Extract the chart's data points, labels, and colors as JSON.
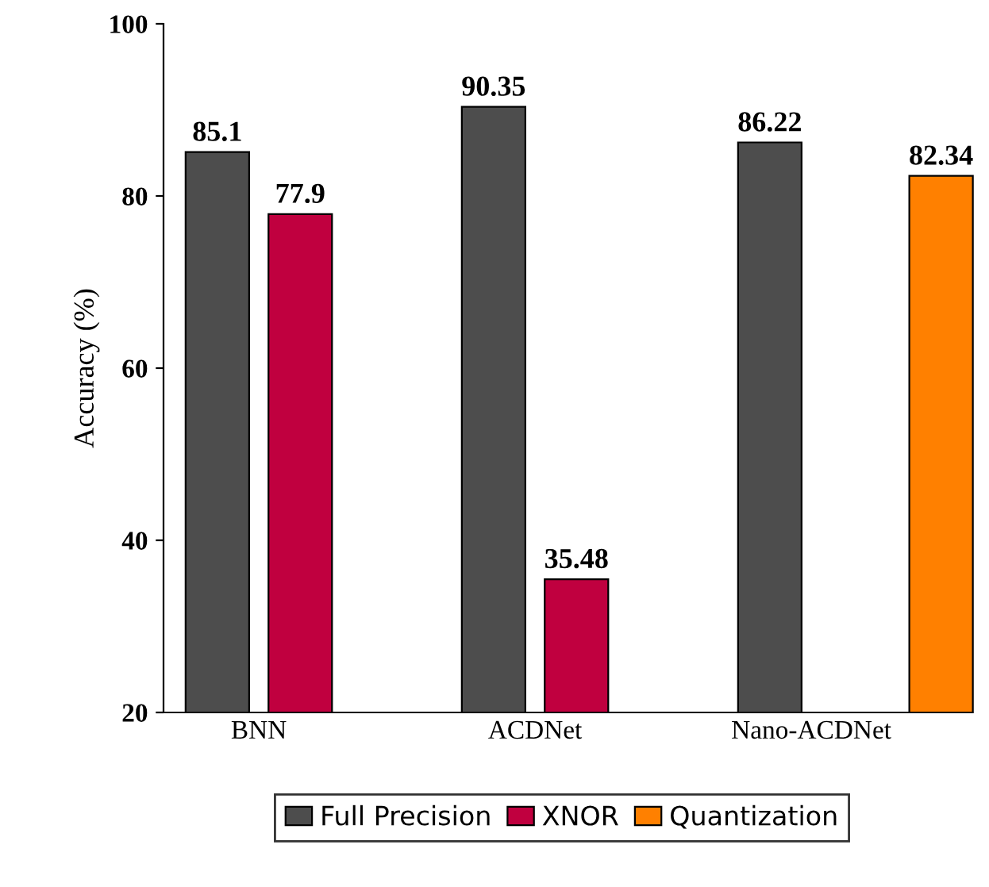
{
  "chart_data": {
    "type": "bar",
    "ylabel": "Accuracy (%)",
    "categories": [
      "BNN",
      "ACDNet",
      "Nano-ACDNet"
    ],
    "series": [
      {
        "name": "Full Precision",
        "color": "#4d4d4d",
        "values": [
          85.1,
          90.35,
          86.22
        ]
      },
      {
        "name": "XNOR",
        "color": "#c0003f",
        "values": [
          77.9,
          35.48,
          null
        ]
      },
      {
        "name": "Quantization",
        "color": "#ff8000",
        "values": [
          null,
          null,
          82.34
        ]
      }
    ],
    "ylim": [
      20,
      100
    ],
    "yticks": [
      20,
      40,
      60,
      80,
      100
    ],
    "data_labels": true,
    "grid": false,
    "legend": "bottom"
  }
}
